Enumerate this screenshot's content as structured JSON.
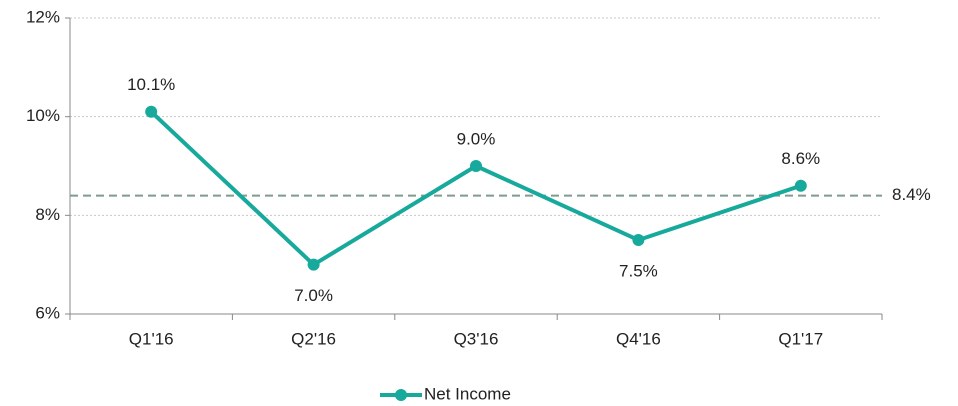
{
  "chart_data": {
    "type": "line",
    "categories": [
      "Q1'16",
      "Q2'16",
      "Q3'16",
      "Q4'16",
      "Q1'17"
    ],
    "series": [
      {
        "name": "Net Income",
        "color": "#17a99b",
        "values": [
          10.1,
          7.0,
          9.0,
          7.5,
          8.6
        ],
        "value_labels": [
          "10.1%",
          "7.0%",
          "9.0%",
          "7.5%",
          "8.6%"
        ]
      }
    ],
    "reference_line": {
      "value": 8.4,
      "label": "8.4%",
      "color": "#7f9a8f"
    },
    "ylim": [
      6,
      12
    ],
    "yticks": [
      {
        "value": 6,
        "label": "6%"
      },
      {
        "value": 8,
        "label": "8%"
      },
      {
        "value": 10,
        "label": "10%"
      },
      {
        "value": 12,
        "label": "12%"
      }
    ],
    "grid": true,
    "legend": "bottom"
  }
}
